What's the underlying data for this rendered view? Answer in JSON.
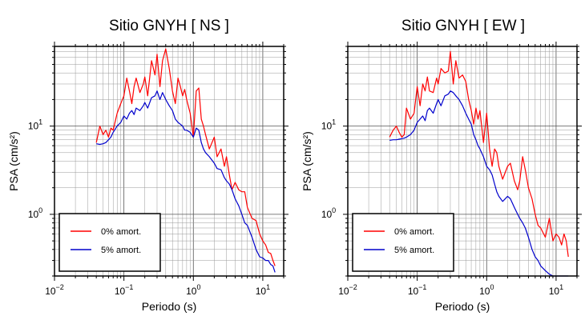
{
  "chart_data": [
    {
      "type": "line",
      "title": "Sitio GNYH [ NS ]",
      "xlabel": "Periodo (s)",
      "ylabel": "PSA (cm/s²)",
      "xscale": "log",
      "yscale": "log",
      "xlim": [
        0.01,
        20
      ],
      "ylim": [
        0.2,
        80
      ],
      "grid": true,
      "legend_position": "bottom-left",
      "x_ticks": [
        {
          "base": "10",
          "exp": "−2"
        },
        {
          "base": "10",
          "exp": "−1"
        },
        {
          "base": "10",
          "exp": "0"
        },
        {
          "base": "10",
          "exp": "1"
        }
      ],
      "y_ticks": [
        {
          "base": "10",
          "exp": "0",
          "value": 1
        },
        {
          "base": "10",
          "exp": "1",
          "value": 10
        }
      ],
      "x": [
        0.04,
        0.045,
        0.05,
        0.055,
        0.06,
        0.065,
        0.07,
        0.08,
        0.09,
        0.1,
        0.11,
        0.12,
        0.13,
        0.14,
        0.15,
        0.17,
        0.19,
        0.2,
        0.22,
        0.25,
        0.28,
        0.3,
        0.33,
        0.36,
        0.4,
        0.45,
        0.5,
        0.55,
        0.6,
        0.65,
        0.7,
        0.75,
        0.8,
        0.9,
        1.0,
        1.1,
        1.2,
        1.3,
        1.4,
        1.5,
        1.7,
        2.0,
        2.2,
        2.5,
        2.8,
        3.0,
        3.3,
        3.6,
        4.0,
        4.5,
        5.0,
        5.5,
        6.0,
        7.0,
        8.0,
        9.0,
        10.0,
        11.0,
        12.0,
        13.0,
        14.0,
        15.0
      ],
      "series": [
        {
          "name": "0% amort.",
          "color": "#ff0000",
          "values": [
            6.5,
            10,
            8,
            9,
            7.5,
            9.5,
            9,
            14,
            18,
            22,
            35,
            25,
            18,
            28,
            35,
            24,
            30,
            36,
            22,
            55,
            38,
            65,
            28,
            55,
            75,
            45,
            25,
            18,
            35,
            28,
            22,
            26,
            20,
            14,
            7.5,
            25,
            27,
            12,
            10,
            8,
            5.5,
            7.5,
            4.5,
            5.5,
            3.5,
            4.5,
            2.8,
            1.9,
            2.3,
            1.9,
            1.8,
            1.8,
            1.2,
            0.9,
            0.85,
            0.6,
            0.5,
            0.45,
            0.37,
            0.36,
            0.3,
            0.26
          ]
        },
        {
          "name": "5% amort.",
          "color": "#0000cc",
          "values": [
            6.3,
            6.2,
            6.3,
            6.5,
            7,
            7.5,
            8.5,
            10,
            11,
            13,
            12,
            14,
            15,
            13.5,
            16,
            15,
            17,
            18.5,
            16,
            21,
            22,
            25,
            20,
            24,
            20,
            17,
            15,
            12,
            11,
            10.5,
            10,
            9,
            9,
            8.5,
            7.5,
            9.5,
            9,
            6.5,
            5.5,
            5,
            4.5,
            3.8,
            3.3,
            3.2,
            2.6,
            2.4,
            2.2,
            1.9,
            1.5,
            1.25,
            1.0,
            0.8,
            0.75,
            0.55,
            0.4,
            0.33,
            0.32,
            0.3,
            0.3,
            0.27,
            0.26,
            0.22
          ]
        }
      ]
    },
    {
      "type": "line",
      "title": "Sitio GNYH [ EW ]",
      "xlabel": "Periodo (s)",
      "ylabel": "PSA (cm/s²)",
      "xscale": "log",
      "yscale": "log",
      "xlim": [
        0.01,
        20
      ],
      "ylim": [
        0.2,
        80
      ],
      "grid": true,
      "legend_position": "bottom-left",
      "x_ticks": [
        {
          "base": "10",
          "exp": "−2"
        },
        {
          "base": "10",
          "exp": "−1"
        },
        {
          "base": "10",
          "exp": "0"
        },
        {
          "base": "10",
          "exp": "1"
        }
      ],
      "y_ticks": [
        {
          "base": "10",
          "exp": "0",
          "value": 1
        },
        {
          "base": "10",
          "exp": "1",
          "value": 10
        }
      ],
      "x": [
        0.04,
        0.045,
        0.05,
        0.055,
        0.06,
        0.065,
        0.07,
        0.08,
        0.09,
        0.1,
        0.11,
        0.12,
        0.13,
        0.14,
        0.15,
        0.17,
        0.19,
        0.2,
        0.22,
        0.25,
        0.28,
        0.3,
        0.33,
        0.36,
        0.4,
        0.45,
        0.5,
        0.55,
        0.6,
        0.65,
        0.7,
        0.75,
        0.8,
        0.9,
        1.0,
        1.1,
        1.2,
        1.3,
        1.4,
        1.5,
        1.7,
        2.0,
        2.2,
        2.5,
        2.8,
        3.0,
        3.3,
        3.6,
        4.0,
        4.5,
        5.0,
        5.5,
        6.0,
        7.0,
        8.0,
        9.0,
        10.0,
        11.0,
        12.0,
        13.0,
        14.0,
        15.0
      ],
      "series": [
        {
          "name": "0% amort.",
          "color": "#ff0000",
          "values": [
            7.5,
            9,
            10,
            8.5,
            7.5,
            8,
            16,
            12,
            14,
            28,
            17,
            30,
            25,
            36,
            25,
            24,
            35,
            30,
            45,
            40,
            42,
            70,
            30,
            55,
            35,
            38,
            32,
            20,
            15,
            10.5,
            16,
            12,
            15,
            6.5,
            14,
            5.5,
            3.5,
            5.5,
            5,
            3.5,
            2.5,
            3.5,
            3.8,
            2.4,
            1.9,
            2.4,
            4.5,
            3.2,
            2.0,
            1.5,
            1.0,
            0.75,
            0.7,
            0.55,
            0.9,
            0.5,
            0.6,
            0.55,
            0.45,
            0.6,
            0.5,
            0.33
          ]
        },
        {
          "name": "5% amort.",
          "color": "#0000cc",
          "values": [
            6.9,
            7,
            7,
            7.1,
            7.2,
            7.3,
            7.5,
            8,
            9,
            11,
            12,
            13,
            11.5,
            15,
            16,
            14,
            18,
            20,
            17,
            22,
            23,
            25,
            24,
            22,
            20,
            17,
            14,
            12,
            10.5,
            8,
            7,
            6,
            5.5,
            4.5,
            3.5,
            3.2,
            2.8,
            2.2,
            1.8,
            1.6,
            1.4,
            1.6,
            1.5,
            1.2,
            1.0,
            0.9,
            0.8,
            0.7,
            0.55,
            0.4,
            0.33,
            0.3,
            0.26,
            0.23,
            0.21,
            0.2,
            0.2,
            0.2,
            0.2,
            0.2,
            0.2,
            0.2
          ]
        }
      ]
    }
  ]
}
